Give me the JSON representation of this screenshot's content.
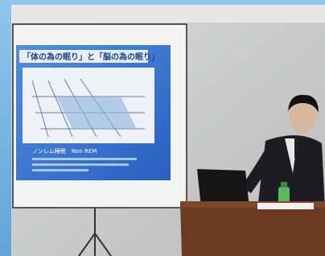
{
  "slide": {
    "title": "「体の為の眠り」と「脳の為の眠り」",
    "subheading": "ノンレム睡眠　Non REM"
  }
}
